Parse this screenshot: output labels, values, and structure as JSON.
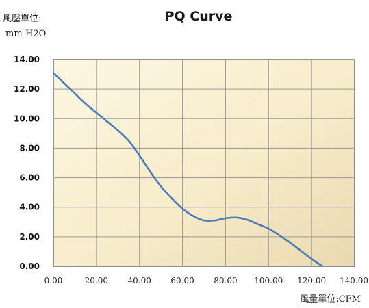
{
  "chart_data": {
    "type": "line",
    "title": "PQ Curve",
    "ylabel_line1": "風壓單位:",
    "ylabel_line2": "mm-H2O",
    "xlabel": "風量單位:CFM",
    "xlim": [
      0,
      140
    ],
    "ylim": [
      0,
      14
    ],
    "x_ticks": [
      "0.00",
      "20.00",
      "40.00",
      "60.00",
      "80.00",
      "100.00",
      "120.00",
      "140.00"
    ],
    "y_ticks": [
      "0.00",
      "2.00",
      "4.00",
      "6.00",
      "8.00",
      "10.00",
      "12.00",
      "14.00"
    ],
    "grid": true,
    "series": [
      {
        "color": "#4a7ab8",
        "x": [
          0,
          5,
          10,
          15,
          20,
          25,
          30,
          35,
          40,
          45,
          50,
          55,
          60,
          65,
          70,
          75,
          80,
          85,
          90,
          95,
          100,
          105,
          110,
          115,
          120,
          125
        ],
        "y": [
          13.1,
          12.4,
          11.7,
          11.0,
          10.4,
          9.8,
          9.2,
          8.5,
          7.5,
          6.4,
          5.4,
          4.6,
          3.9,
          3.4,
          3.1,
          3.1,
          3.25,
          3.3,
          3.15,
          2.85,
          2.55,
          2.1,
          1.6,
          1.05,
          0.5,
          0.0
        ]
      }
    ]
  }
}
